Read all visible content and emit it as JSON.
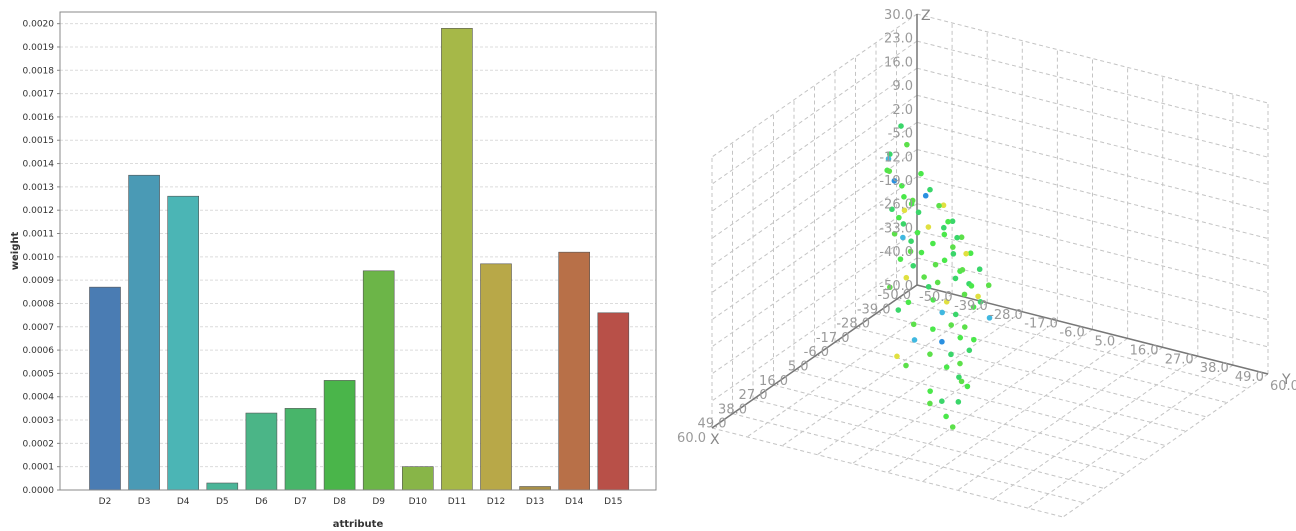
{
  "chart_data": [
    {
      "type": "bar",
      "xlabel": "attribute",
      "ylabel": "weight",
      "categories": [
        "D2",
        "D3",
        "D4",
        "D5",
        "D6",
        "D7",
        "D8",
        "D9",
        "D10",
        "D11",
        "D12",
        "D13",
        "D14",
        "D15"
      ],
      "values": [
        0.00087,
        0.00135,
        0.00126,
        3e-05,
        0.00033,
        0.00035,
        0.00047,
        0.00094,
        0.0001,
        0.00198,
        0.00097,
        1.5e-05,
        0.00102,
        0.00076
      ],
      "colors": [
        "#4a7cb3",
        "#4a9ab5",
        "#4bb5b5",
        "#4ab598",
        "#4bb587",
        "#48b56a",
        "#4ab54a",
        "#6cb548",
        "#88b548",
        "#a6b848",
        "#b8a848",
        "#a89048",
        "#b87048",
        "#b85048"
      ],
      "ylim": [
        0,
        0.00205
      ],
      "yticks": [
        "0.0000",
        "0.0001",
        "0.0002",
        "0.0003",
        "0.0004",
        "0.0005",
        "0.0006",
        "0.0007",
        "0.0008",
        "0.0009",
        "0.0010",
        "0.0011",
        "0.0012",
        "0.0013",
        "0.0014",
        "0.0015",
        "0.0016",
        "0.0017",
        "0.0018",
        "0.0019",
        "0.0020"
      ],
      "grid": true
    },
    {
      "type": "scatter",
      "axis_names": {
        "x": "X",
        "y": "Y",
        "z": "Z"
      },
      "x_ticks": [
        "60.0",
        "49.0",
        "38.0",
        "27.0",
        "16.0",
        "5.0",
        "-6.0",
        "-17.0",
        "-28.0",
        "-39.0",
        "-50.0"
      ],
      "y_ticks": [
        "-50.0",
        "-39.0",
        "-28.0",
        "-17.0",
        "-6.0",
        "5.0",
        "16.0",
        "27.0",
        "38.0",
        "49.0",
        "60.0"
      ],
      "z_ticks": [
        "-50.0",
        "-40.0",
        "-33.0",
        "-26.0",
        "-19.0",
        "-12.0",
        "-5.0",
        "2.0",
        "9.0",
        "16.0",
        "23.0",
        "30.0"
      ],
      "xlim": [
        -50,
        60
      ],
      "ylim": [
        -50,
        60
      ],
      "zlim": [
        -50,
        30
      ],
      "grid": true,
      "point_colors": [
        "#4ae84a",
        "#3ad66a",
        "#5ce04a",
        "#e0e040",
        "#40b8e0",
        "#2a90e0"
      ],
      "points": [
        [
          -34,
          -50,
          -10
        ],
        [
          -32,
          -48,
          -4
        ],
        [
          -30,
          -47,
          -8
        ],
        [
          -35,
          -46,
          -14
        ],
        [
          -28,
          -45,
          -18
        ],
        [
          -33,
          -44,
          -20
        ],
        [
          -31,
          -43,
          -15
        ],
        [
          -29,
          -42,
          -22
        ],
        [
          -27,
          -41,
          -25
        ],
        [
          -30,
          -40,
          -16
        ],
        [
          -32,
          -39,
          -19
        ],
        [
          -26,
          -38,
          -28
        ],
        [
          -28,
          -37,
          -23
        ],
        [
          -24,
          -36,
          -31
        ],
        [
          -29,
          -35,
          -12
        ],
        [
          -25,
          -34,
          -27
        ],
        [
          -27,
          -33,
          -20
        ],
        [
          -23,
          -32,
          -33
        ],
        [
          -26,
          -31,
          -24
        ],
        [
          -22,
          -30,
          -35
        ],
        [
          -24,
          -29,
          -29
        ],
        [
          -21,
          -28,
          -38
        ],
        [
          -25,
          -27,
          -18
        ],
        [
          -20,
          -26,
          -32
        ],
        [
          -22,
          -25,
          -26
        ],
        [
          -19,
          -24,
          -40
        ],
        [
          -23,
          -23,
          -22
        ],
        [
          -18,
          -22,
          -36
        ],
        [
          -21,
          -21,
          -30
        ],
        [
          -17,
          -20,
          -42
        ],
        [
          -20,
          -19,
          -27
        ],
        [
          -16,
          -18,
          -38
        ],
        [
          -19,
          -17,
          -33
        ],
        [
          -15,
          -16,
          -44
        ],
        [
          -18,
          -15,
          -29
        ],
        [
          -14,
          -14,
          -40
        ],
        [
          -17,
          -13,
          -35
        ],
        [
          -13,
          -12,
          -46
        ],
        [
          -16,
          -11,
          -31
        ],
        [
          -12,
          -10,
          -42
        ],
        [
          -38,
          -48,
          2
        ],
        [
          -36,
          -45,
          -2
        ],
        [
          -33,
          -49,
          -6
        ],
        [
          -31,
          -46,
          -11
        ],
        [
          -34,
          -42,
          -17
        ],
        [
          -30,
          -44,
          -21
        ],
        [
          -28,
          -39,
          -26
        ],
        [
          -26,
          -43,
          -24
        ],
        [
          -24,
          -40,
          -30
        ],
        [
          -22,
          -37,
          -34
        ],
        [
          -20,
          -41,
          -37
        ],
        [
          -18,
          -34,
          -39
        ],
        [
          -16,
          -36,
          -41
        ],
        [
          -14,
          -30,
          -43
        ],
        [
          -27,
          -28,
          -21
        ],
        [
          -25,
          -24,
          -25
        ],
        [
          -23,
          -20,
          -28
        ],
        [
          -21,
          -16,
          -31
        ],
        [
          -19,
          -12,
          -34
        ],
        [
          -17,
          -8,
          -37
        ],
        [
          -30,
          -30,
          -14
        ],
        [
          -28,
          -26,
          -17
        ],
        [
          -26,
          -22,
          -20
        ],
        [
          -24,
          -18,
          -23
        ],
        [
          -22,
          -14,
          -26
        ],
        [
          -20,
          -10,
          -29
        ],
        [
          -35,
          -40,
          -9
        ],
        [
          -33,
          -36,
          -12
        ],
        [
          -31,
          -32,
          -15
        ],
        [
          -29,
          -28,
          -18
        ],
        [
          -27,
          -24,
          -21
        ],
        [
          -25,
          -20,
          -24
        ],
        [
          -12,
          -20,
          -45
        ],
        [
          -10,
          -16,
          -47
        ],
        [
          -8,
          -12,
          -48
        ],
        [
          -14,
          -24,
          -43
        ],
        [
          -11,
          -28,
          -46
        ],
        [
          -9,
          -22,
          -48
        ],
        [
          -6,
          -15,
          -49
        ],
        [
          -4,
          -10,
          -50
        ],
        [
          -2,
          -8,
          -50
        ],
        [
          0,
          -5,
          -50
        ],
        [
          -5,
          -30,
          -49
        ],
        [
          -3,
          -26,
          -50
        ],
        [
          8,
          -12,
          -50
        ],
        [
          12,
          -6,
          -50
        ],
        [
          15,
          -8,
          -50
        ],
        [
          20,
          0,
          -50
        ],
        [
          10,
          -2,
          -50
        ],
        [
          25,
          5,
          -50
        ]
      ]
    }
  ]
}
